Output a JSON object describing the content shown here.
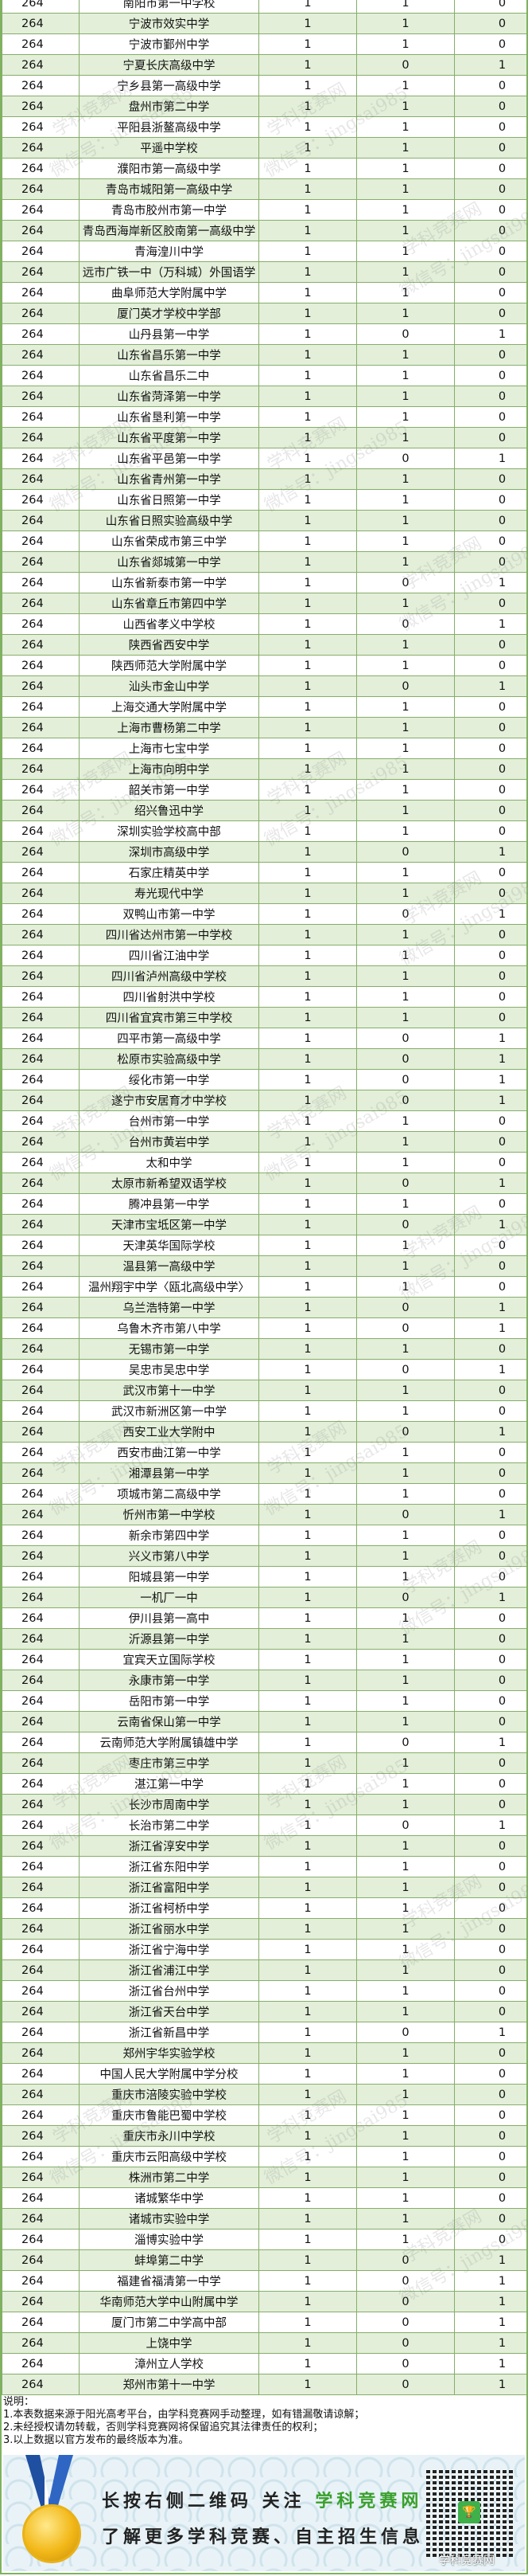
{
  "table": {
    "rows": [
      [
        "264",
        "南阳市第一中学校",
        "1",
        "1",
        "0"
      ],
      [
        "264",
        "宁波市效实中学",
        "1",
        "1",
        "0"
      ],
      [
        "264",
        "宁波市鄞州中学",
        "1",
        "1",
        "0"
      ],
      [
        "264",
        "宁夏长庆高级中学",
        "1",
        "0",
        "1"
      ],
      [
        "264",
        "宁乡县第一高级中学",
        "1",
        "1",
        "0"
      ],
      [
        "264",
        "盘州市第二中学",
        "1",
        "1",
        "0"
      ],
      [
        "264",
        "平阳县浙鳌高级中学",
        "1",
        "1",
        "0"
      ],
      [
        "264",
        "平遥中学校",
        "1",
        "1",
        "0"
      ],
      [
        "264",
        "濮阳市第一高级中学",
        "1",
        "1",
        "0"
      ],
      [
        "264",
        "青岛市城阳第一高级中学",
        "1",
        "1",
        "0"
      ],
      [
        "264",
        "青岛市胶州市第一中学",
        "1",
        "1",
        "0"
      ],
      [
        "264",
        "青岛西海岸新区胶南第一高级中学",
        "1",
        "1",
        "0"
      ],
      [
        "264",
        "青海湟川中学",
        "1",
        "1",
        "0"
      ],
      [
        "264",
        "远市广铁一中（万科城）外国语学",
        "1",
        "1",
        "0"
      ],
      [
        "264",
        "曲阜师范大学附属中学",
        "1",
        "1",
        "0"
      ],
      [
        "264",
        "厦门英才学校中学部",
        "1",
        "1",
        "0"
      ],
      [
        "264",
        "山丹县第一中学",
        "1",
        "0",
        "1"
      ],
      [
        "264",
        "山东省昌乐第一中学",
        "1",
        "1",
        "0"
      ],
      [
        "264",
        "山东省昌乐二中",
        "1",
        "1",
        "0"
      ],
      [
        "264",
        "山东省菏泽第一中学",
        "1",
        "1",
        "0"
      ],
      [
        "264",
        "山东省垦利第一中学",
        "1",
        "1",
        "0"
      ],
      [
        "264",
        "山东省平度第一中学",
        "1",
        "1",
        "0"
      ],
      [
        "264",
        "山东省平邑第一中学",
        "1",
        "0",
        "1"
      ],
      [
        "264",
        "山东省青州第一中学",
        "1",
        "1",
        "0"
      ],
      [
        "264",
        "山东省日照第一中学",
        "1",
        "1",
        "0"
      ],
      [
        "264",
        "山东省日照实验高级中学",
        "1",
        "1",
        "0"
      ],
      [
        "264",
        "山东省荣成市第三中学",
        "1",
        "1",
        "0"
      ],
      [
        "264",
        "山东省郯城第一中学",
        "1",
        "1",
        "0"
      ],
      [
        "264",
        "山东省新泰市第一中学",
        "1",
        "0",
        "1"
      ],
      [
        "264",
        "山东省章丘市第四中学",
        "1",
        "1",
        "0"
      ],
      [
        "264",
        "山西省孝义中学校",
        "1",
        "0",
        "1"
      ],
      [
        "264",
        "陕西省西安中学",
        "1",
        "1",
        "0"
      ],
      [
        "264",
        "陕西师范大学附属中学",
        "1",
        "1",
        "0"
      ],
      [
        "264",
        "汕头市金山中学",
        "1",
        "0",
        "1"
      ],
      [
        "264",
        "上海交通大学附属中学",
        "1",
        "1",
        "0"
      ],
      [
        "264",
        "上海市曹杨第二中学",
        "1",
        "1",
        "0"
      ],
      [
        "264",
        "上海市七宝中学",
        "1",
        "1",
        "0"
      ],
      [
        "264",
        "上海市向明中学",
        "1",
        "1",
        "0"
      ],
      [
        "264",
        "韶关市第一中学",
        "1",
        "1",
        "0"
      ],
      [
        "264",
        "绍兴鲁迅中学",
        "1",
        "1",
        "0"
      ],
      [
        "264",
        "深圳实验学校高中部",
        "1",
        "1",
        "0"
      ],
      [
        "264",
        "深圳市高级中学",
        "1",
        "0",
        "1"
      ],
      [
        "264",
        "石家庄精英中学",
        "1",
        "1",
        "0"
      ],
      [
        "264",
        "寿光现代中学",
        "1",
        "1",
        "0"
      ],
      [
        "264",
        "双鸭山市第一中学",
        "1",
        "0",
        "1"
      ],
      [
        "264",
        "四川省达州市第一中学校",
        "1",
        "1",
        "0"
      ],
      [
        "264",
        "四川省江油中学",
        "1",
        "1",
        "0"
      ],
      [
        "264",
        "四川省泸州高级中学校",
        "1",
        "1",
        "0"
      ],
      [
        "264",
        "四川省射洪中学校",
        "1",
        "1",
        "0"
      ],
      [
        "264",
        "四川省宜宾市第三中学校",
        "1",
        "1",
        "0"
      ],
      [
        "264",
        "四平市第一高级中学",
        "1",
        "0",
        "1"
      ],
      [
        "264",
        "松原市实验高级中学",
        "1",
        "0",
        "1"
      ],
      [
        "264",
        "绥化市第一中学",
        "1",
        "0",
        "1"
      ],
      [
        "264",
        "遂宁市安居育才中学校",
        "1",
        "0",
        "1"
      ],
      [
        "264",
        "台州市第一中学",
        "1",
        "1",
        "0"
      ],
      [
        "264",
        "台州市黄岩中学",
        "1",
        "1",
        "0"
      ],
      [
        "264",
        "太和中学",
        "1",
        "1",
        "0"
      ],
      [
        "264",
        "太原市新希望双语学校",
        "1",
        "0",
        "1"
      ],
      [
        "264",
        "腾冲县第一中学",
        "1",
        "1",
        "0"
      ],
      [
        "264",
        "天津市宝坻区第一中学",
        "1",
        "0",
        "1"
      ],
      [
        "264",
        "天津英华国际学校",
        "1",
        "1",
        "0"
      ],
      [
        "264",
        "温县第一高级中学",
        "1",
        "1",
        "0"
      ],
      [
        "264",
        "温州翔宇中学〈瓯北高级中学〉",
        "1",
        "1",
        "0"
      ],
      [
        "264",
        "乌兰浩特第一中学",
        "1",
        "0",
        "1"
      ],
      [
        "264",
        "乌鲁木齐市第八中学",
        "1",
        "0",
        "1"
      ],
      [
        "264",
        "无锡市第一中学",
        "1",
        "1",
        "0"
      ],
      [
        "264",
        "吴忠市吴忠中学",
        "1",
        "0",
        "1"
      ],
      [
        "264",
        "武汉市第十一中学",
        "1",
        "1",
        "0"
      ],
      [
        "264",
        "武汉市新洲区第一中学",
        "1",
        "1",
        "0"
      ],
      [
        "264",
        "西安工业大学附中",
        "1",
        "0",
        "1"
      ],
      [
        "264",
        "西安市曲江第一中学",
        "1",
        "1",
        "0"
      ],
      [
        "264",
        "湘潭县第一中学",
        "1",
        "1",
        "0"
      ],
      [
        "264",
        "项城市第二高级中学",
        "1",
        "1",
        "0"
      ],
      [
        "264",
        "忻州市第一中学校",
        "1",
        "0",
        "1"
      ],
      [
        "264",
        "新余市第四中学",
        "1",
        "1",
        "0"
      ],
      [
        "264",
        "兴义市第八中学",
        "1",
        "1",
        "0"
      ],
      [
        "264",
        "阳城县第一中学",
        "1",
        "1",
        "0"
      ],
      [
        "264",
        "一机厂一中",
        "1",
        "0",
        "1"
      ],
      [
        "264",
        "伊川县第一高中",
        "1",
        "1",
        "0"
      ],
      [
        "264",
        "沂源县第一中学",
        "1",
        "1",
        "0"
      ],
      [
        "264",
        "宜宾天立国际学校",
        "1",
        "1",
        "0"
      ],
      [
        "264",
        "永康市第一中学",
        "1",
        "1",
        "0"
      ],
      [
        "264",
        "岳阳市第一中学",
        "1",
        "1",
        "0"
      ],
      [
        "264",
        "云南省保山第一中学",
        "1",
        "1",
        "0"
      ],
      [
        "264",
        "云南师范大学附属镇雄中学",
        "1",
        "0",
        "1"
      ],
      [
        "264",
        "枣庄市第三中学",
        "1",
        "1",
        "0"
      ],
      [
        "264",
        "湛江第一中学",
        "1",
        "1",
        "0"
      ],
      [
        "264",
        "长沙市周南中学",
        "1",
        "1",
        "0"
      ],
      [
        "264",
        "长治市第二中学",
        "1",
        "0",
        "1"
      ],
      [
        "264",
        "浙江省淳安中学",
        "1",
        "1",
        "0"
      ],
      [
        "264",
        "浙江省东阳中学",
        "1",
        "1",
        "0"
      ],
      [
        "264",
        "浙江省富阳中学",
        "1",
        "1",
        "0"
      ],
      [
        "264",
        "浙江省柯桥中学",
        "1",
        "1",
        "0"
      ],
      [
        "264",
        "浙江省丽水中学",
        "1",
        "1",
        "0"
      ],
      [
        "264",
        "浙江省宁海中学",
        "1",
        "1",
        "0"
      ],
      [
        "264",
        "浙江省浦江中学",
        "1",
        "1",
        "0"
      ],
      [
        "264",
        "浙江省台州中学",
        "1",
        "1",
        "0"
      ],
      [
        "264",
        "浙江省天台中学",
        "1",
        "1",
        "0"
      ],
      [
        "264",
        "浙江省新昌中学",
        "1",
        "0",
        "1"
      ],
      [
        "264",
        "郑州宇华实验学校",
        "1",
        "1",
        "0"
      ],
      [
        "264",
        "中国人民大学附属中学分校",
        "1",
        "1",
        "0"
      ],
      [
        "264",
        "重庆市涪陵实验中学校",
        "1",
        "1",
        "0"
      ],
      [
        "264",
        "重庆市鲁能巴蜀中学校",
        "1",
        "1",
        "0"
      ],
      [
        "264",
        "重庆市永川中学校",
        "1",
        "1",
        "0"
      ],
      [
        "264",
        "重庆市云阳高级中学校",
        "1",
        "1",
        "0"
      ],
      [
        "264",
        "株洲市第二中学",
        "1",
        "1",
        "0"
      ],
      [
        "264",
        "诸城繁华中学",
        "1",
        "1",
        "0"
      ],
      [
        "264",
        "诸城市实验中学",
        "1",
        "1",
        "0"
      ],
      [
        "264",
        "淄博实验中学",
        "1",
        "1",
        "0"
      ],
      [
        "264",
        "蚌埠第二中学",
        "1",
        "0",
        "1"
      ],
      [
        "264",
        "福建省福清第一中学",
        "1",
        "0",
        "1"
      ],
      [
        "264",
        "华南师范大学中山附属中学",
        "1",
        "0",
        "1"
      ],
      [
        "264",
        "厦门市第二中学高中部",
        "1",
        "0",
        "1"
      ],
      [
        "264",
        "上饶中学",
        "1",
        "0",
        "1"
      ],
      [
        "264",
        "漳州立人学校",
        "1",
        "0",
        "1"
      ],
      [
        "264",
        "郑州市第十一中学",
        "1",
        "0",
        "1"
      ]
    ]
  },
  "notes": {
    "title": "说明：",
    "items": [
      "1.本表数据来源于阳光高考平台，由学科竞赛网手动整理，如有错漏敬请谅解；",
      "2.未经授权请勿转载，否则学科竞赛网将保留追究其法律责任的权利；",
      "3.以上数据以官方发布的最终版本为准。"
    ]
  },
  "banner": {
    "line1_prefix": "长按右侧二维码 关注 ",
    "line1_brand": "学科竞赛网",
    "line2": "了解更多学科竞赛、自主招生信息",
    "qr_caption": "学科竞赛网",
    "brand_color": "#3aa02d"
  },
  "watermark": {
    "line1": "学科竞赛网",
    "line2": "微信号：jingsai985"
  },
  "colors": {
    "row_alt": "#e3efd9",
    "grid": "#86ad6a",
    "border": "#7fb25f"
  }
}
